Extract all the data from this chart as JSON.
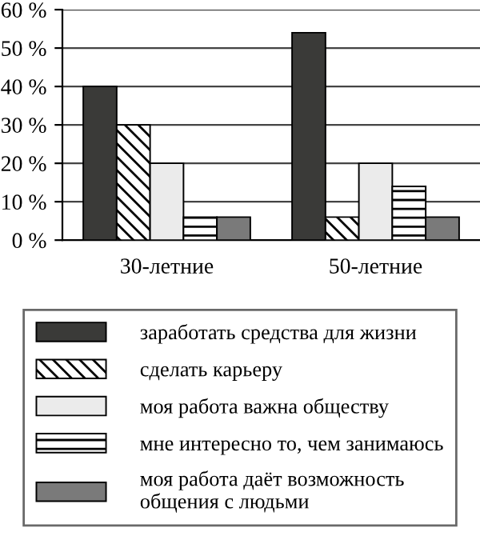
{
  "chart_data": {
    "type": "bar",
    "categories": [
      "30-летние",
      "50-летние"
    ],
    "series": [
      {
        "name": "заработать средства для жизни",
        "color": "#3a3a38",
        "values": [
          40,
          54
        ]
      },
      {
        "name": "сделать карьеру",
        "color": "#000000",
        "values": [
          30,
          6
        ]
      },
      {
        "name": "моя работа важна обществу",
        "color": "#ebebeb",
        "values": [
          20,
          20
        ]
      },
      {
        "name": "мне интересно то, чем занимаюсь",
        "color": "#000000",
        "values": [
          6,
          14
        ]
      },
      {
        "name": "моя работа даёт возможность\nобщения с людьми",
        "color": "#7a7a7a",
        "values": [
          6,
          6
        ]
      }
    ],
    "ylim": [
      0,
      60
    ],
    "yticks": [
      {
        "value": 0,
        "label": "0 %"
      },
      {
        "value": 10,
        "label": "10 %"
      },
      {
        "value": 20,
        "label": "20 %"
      },
      {
        "value": 30,
        "label": "30 %"
      },
      {
        "value": 40,
        "label": "40 %"
      },
      {
        "value": 50,
        "label": "50 %"
      },
      {
        "value": 60,
        "label": "60 %"
      }
    ],
    "grid": "y",
    "legend": "bottom"
  }
}
